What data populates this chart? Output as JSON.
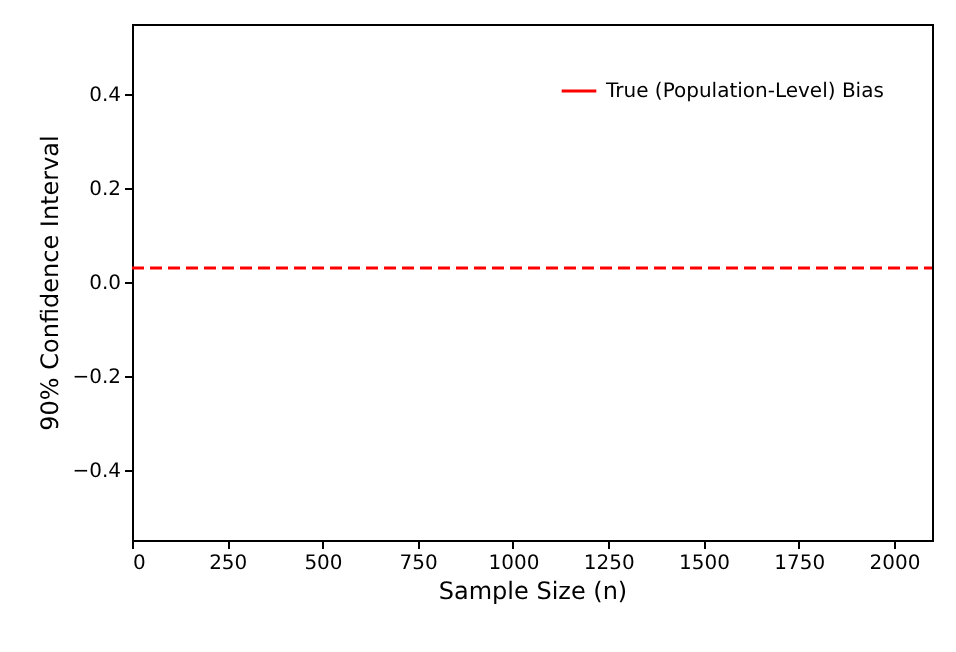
{
  "chart_data": {
    "type": "line",
    "xlabel": "Sample Size (n)",
    "ylabel": "90% Confidence Interval",
    "x": [
      0,
      2100
    ],
    "series": [
      {
        "name": "True (Population-Level) Bias",
        "color": "#ff0000",
        "values": [
          0.03,
          0.03
        ],
        "line_style": "dashed"
      }
    ],
    "xlim": [
      0,
      2100
    ],
    "xticks": [
      0,
      250,
      500,
      750,
      1000,
      1250,
      1500,
      1750,
      2000
    ],
    "ylim": [
      -0.55,
      0.55
    ],
    "yticks": [
      {
        "value": -0.4,
        "label": "−0.4"
      },
      {
        "value": -0.2,
        "label": "−0.2"
      },
      {
        "value": 0,
        "label": "0.0"
      },
      0.2,
      0.4
    ],
    "grid": false,
    "legend": "top right",
    "marker": "none"
  }
}
